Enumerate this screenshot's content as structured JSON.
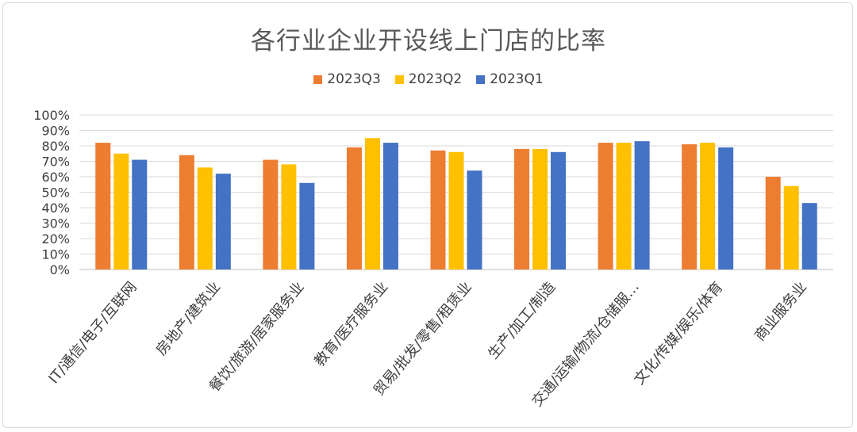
{
  "chart_data": {
    "type": "bar",
    "title": "各行业企业开设线上门店的比率",
    "categories": [
      "IT/通信/电子/互联网",
      "房地产/建筑业",
      "餐饮/旅游/居家服务业",
      "教育/医疗服务业",
      "贸易/批发/零售/租赁业",
      "生产/加工/制造",
      "交通/运输/物流/仓储服…",
      "文化/传媒/娱乐/体育",
      "商业服务业"
    ],
    "series": [
      {
        "name": "2023Q3",
        "color": "#ED7D31",
        "values": [
          82,
          74,
          71,
          79,
          77,
          78,
          82,
          81,
          60
        ]
      },
      {
        "name": "2023Q2",
        "color": "#FFC000",
        "values": [
          75,
          66,
          68,
          85,
          76,
          78,
          82,
          82,
          54
        ]
      },
      {
        "name": "2023Q1",
        "color": "#4472C4",
        "values": [
          71,
          62,
          56,
          82,
          64,
          76,
          83,
          79,
          43
        ]
      }
    ],
    "yticks": [
      "0%",
      "10%",
      "20%",
      "30%",
      "40%",
      "50%",
      "60%",
      "70%",
      "80%",
      "90%",
      "100%"
    ],
    "ylim": [
      0,
      100
    ],
    "grid": true,
    "legend": "top-center"
  }
}
